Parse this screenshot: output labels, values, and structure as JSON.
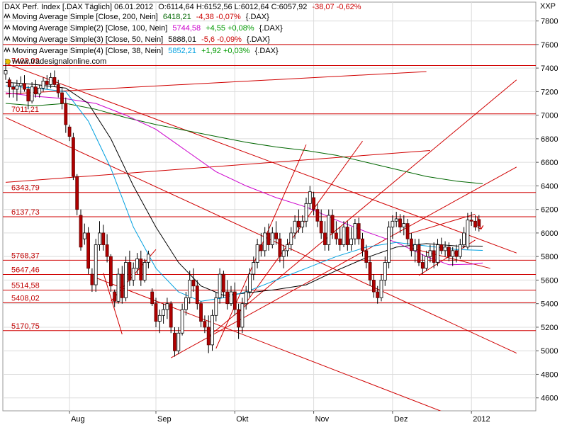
{
  "header": {
    "line": "DAX Perf. Index [.DAX Täglich] 06.01.2012",
    "ohlc": "O:6114,64 H:6152,56 L:6012,64 C:6057,92",
    "change": "-38,07 -0,62%"
  },
  "indicators": [
    {
      "label": "Moving Average Simple [Close, 200, Nein]",
      "value": "6418,21",
      "change": "-4,38 -0,07%",
      "suffix": "{.DAX}",
      "color": "#006600"
    },
    {
      "label": "Moving Average Simple(2) [Close, 100, Nein]",
      "value": "5744,58",
      "change": "+4,55 +0,08%",
      "suffix": "{.DAX}",
      "color": "#cc00cc"
    },
    {
      "label": "Moving Average Simple(3) [Close, 50, Nein]",
      "value": "5888,01",
      "change": "-5,6 -0,09%",
      "suffix": "{.DAX}",
      "color": "#000000"
    },
    {
      "label": "Moving Average Simple(4) [Close, 38, Nein]",
      "value": "5852,21",
      "change": "+1,92 +0,03%",
      "suffix": "{.DAX}",
      "color": "#00a0e0"
    }
  ],
  "watermark": "www.tradesignalonline.com",
  "chart_data": {
    "type": "candlestick",
    "y_axis_label": "XXP",
    "ylim": [
      4490,
      7960
    ],
    "y_ticks": [
      4600,
      4800,
      5000,
      5200,
      5400,
      5600,
      5800,
      6000,
      6200,
      6400,
      6600,
      6800,
      7000,
      7200,
      7400,
      7600,
      7800
    ],
    "x_range": [
      0,
      136
    ],
    "x_ticks": [
      {
        "label": "Aug",
        "x": 17
      },
      {
        "label": "Sep",
        "x": 40
      },
      {
        "label": "Okt",
        "x": 61
      },
      {
        "label": "Nov",
        "x": 82
      },
      {
        "label": "Dez",
        "x": 103
      },
      {
        "label": "2012",
        "x": 124
      }
    ],
    "levels": [
      {
        "value": 7422.02,
        "label": "7422,02"
      },
      {
        "value": 7011.21,
        "label": "7011,21"
      },
      {
        "value": 6343.79,
        "label": "6343,79"
      },
      {
        "value": 6137.73,
        "label": "6137,73"
      },
      {
        "value": 5768.37,
        "label": "5768,37"
      },
      {
        "value": 5647.46,
        "label": "5647,46"
      },
      {
        "value": 5514.58,
        "label": "5514,58"
      },
      {
        "value": 5408.02,
        "label": "5408,02"
      },
      {
        "value": 5170.75,
        "label": "5170,75"
      },
      {
        "value": 7600,
        "label": ""
      }
    ],
    "trendlines": [
      {
        "x1": 0,
        "y1": 7440,
        "x2": 136,
        "y2": 5830
      },
      {
        "x1": 0,
        "y1": 6980,
        "x2": 136,
        "y2": 4980
      },
      {
        "x1": 24,
        "y1": 5620,
        "x2": 136,
        "y2": 4240
      },
      {
        "x1": 0,
        "y1": 6430,
        "x2": 113,
        "y2": 6700
      },
      {
        "x1": 0,
        "y1": 7180,
        "x2": 112,
        "y2": 7370
      },
      {
        "x1": 44,
        "y1": 4940,
        "x2": 136,
        "y2": 6560
      },
      {
        "x1": 54,
        "y1": 5120,
        "x2": 136,
        "y2": 7300
      },
      {
        "x1": 56,
        "y1": 5020,
        "x2": 80,
        "y2": 6750
      },
      {
        "x1": 62,
        "y1": 5320,
        "x2": 95,
        "y2": 6780
      },
      {
        "x1": 26,
        "y1": 5660,
        "x2": 31,
        "y2": 5140
      },
      {
        "x1": 28,
        "y1": 5420,
        "x2": 40,
        "y2": 5860
      },
      {
        "x1": 107,
        "y1": 5990,
        "x2": 125,
        "y2": 6160
      },
      {
        "x1": 110,
        "y1": 5640,
        "x2": 125,
        "y2": 5940
      },
      {
        "x1": 108,
        "y1": 5870,
        "x2": 129,
        "y2": 5700
      }
    ],
    "candles": [
      [
        7350,
        7480,
        7300,
        7380
      ],
      [
        7300,
        7320,
        7150,
        7240
      ],
      [
        7240,
        7270,
        7150,
        7220
      ],
      [
        7220,
        7300,
        7120,
        7250
      ],
      [
        7250,
        7330,
        7180,
        7270
      ],
      [
        7270,
        7340,
        7200,
        7220
      ],
      [
        7220,
        7250,
        7050,
        7120
      ],
      [
        7120,
        7280,
        7100,
        7240
      ],
      [
        7240,
        7300,
        7150,
        7180
      ],
      [
        7180,
        7260,
        7150,
        7230
      ],
      [
        7230,
        7320,
        7200,
        7290
      ],
      [
        7290,
        7340,
        7220,
        7260
      ],
      [
        7260,
        7360,
        7230,
        7320
      ],
      [
        7320,
        7380,
        7240,
        7260
      ],
      [
        7260,
        7300,
        7150,
        7190
      ],
      [
        7190,
        7240,
        7050,
        7100
      ],
      [
        7100,
        7150,
        6850,
        6920
      ],
      [
        6900,
        6920,
        6780,
        6820
      ],
      [
        6810,
        6850,
        6450,
        6480
      ],
      [
        6480,
        6500,
        6150,
        6200
      ],
      [
        6150,
        6200,
        5850,
        5880
      ],
      [
        5950,
        6080,
        5900,
        6000
      ],
      [
        6000,
        6050,
        5650,
        5700
      ],
      [
        5650,
        5700,
        5500,
        5560
      ],
      [
        5560,
        5950,
        5500,
        5900
      ],
      [
        5900,
        6100,
        5850,
        6000
      ],
      [
        6000,
        6070,
        5850,
        5900
      ],
      [
        5900,
        5990,
        5750,
        5800
      ],
      [
        5800,
        5820,
        5500,
        5550
      ],
      [
        5500,
        5520,
        5370,
        5420
      ],
      [
        5420,
        5700,
        5400,
        5650
      ],
      [
        5650,
        5720,
        5400,
        5450
      ],
      [
        5450,
        5800,
        5420,
        5750
      ],
      [
        5750,
        5850,
        5550,
        5600
      ],
      [
        5600,
        5750,
        5550,
        5700
      ],
      [
        5700,
        5830,
        5650,
        5780
      ],
      [
        5780,
        5850,
        5550,
        5600
      ],
      [
        5600,
        5780,
        5580,
        5750
      ],
      [
        5750,
        5850,
        5700,
        5820
      ],
      [
        5500,
        5530,
        5380,
        5400
      ],
      [
        5400,
        5450,
        5200,
        5250
      ],
      [
        5250,
        5350,
        5150,
        5300
      ],
      [
        5300,
        5400,
        5230,
        5350
      ],
      [
        5350,
        5450,
        5270,
        5400
      ],
      [
        5400,
        5420,
        5150,
        5200
      ],
      [
        5150,
        5200,
        4950,
        5000
      ],
      [
        5000,
        5200,
        4970,
        5150
      ],
      [
        5150,
        5400,
        5130,
        5350
      ],
      [
        5350,
        5500,
        5300,
        5450
      ],
      [
        5450,
        5680,
        5400,
        5600
      ],
      [
        5600,
        5700,
        5500,
        5550
      ],
      [
        5550,
        5600,
        5350,
        5400
      ],
      [
        5400,
        5420,
        5200,
        5250
      ],
      [
        5250,
        5300,
        5150,
        5200
      ],
      [
        5200,
        5300,
        4980,
        5050
      ],
      [
        5050,
        5350,
        5000,
        5300
      ],
      [
        5300,
        5500,
        5250,
        5450
      ],
      [
        5450,
        5700,
        5400,
        5650
      ],
      [
        5650,
        5680,
        5450,
        5500
      ],
      [
        5500,
        5600,
        5350,
        5400
      ],
      [
        5400,
        5550,
        5380,
        5500
      ],
      [
        5500,
        5580,
        5300,
        5350
      ],
      [
        5350,
        5400,
        5100,
        5200
      ],
      [
        5200,
        5450,
        5150,
        5400
      ],
      [
        5400,
        5550,
        5350,
        5500
      ],
      [
        5500,
        5700,
        5450,
        5650
      ],
      [
        5650,
        5800,
        5600,
        5750
      ],
      [
        5750,
        5950,
        5700,
        5900
      ],
      [
        5900,
        6000,
        5800,
        5850
      ],
      [
        5850,
        6050,
        5800,
        6000
      ],
      [
        6000,
        6080,
        5850,
        5900
      ],
      [
        5900,
        6050,
        5870,
        6000
      ],
      [
        6000,
        6100,
        5900,
        5950
      ],
      [
        5950,
        6000,
        5750,
        5800
      ],
      [
        5800,
        5900,
        5700,
        5850
      ],
      [
        5850,
        5950,
        5800,
        5900
      ],
      [
        5900,
        6050,
        5850,
        6000
      ],
      [
        6000,
        6150,
        5950,
        6100
      ],
      [
        6100,
        6200,
        6000,
        6050
      ],
      [
        6050,
        6150,
        6000,
        6100
      ],
      [
        6100,
        6300,
        6050,
        6250
      ],
      [
        6250,
        6400,
        6200,
        6350
      ],
      [
        6300,
        6350,
        6150,
        6200
      ],
      [
        6200,
        6250,
        6050,
        6100
      ],
      [
        6100,
        6200,
        5950,
        6000
      ],
      [
        6000,
        6100,
        5850,
        5900
      ],
      [
        5900,
        6200,
        5850,
        6150
      ],
      [
        6150,
        6200,
        5950,
        6000
      ],
      [
        6000,
        6100,
        5900,
        5950
      ],
      [
        5950,
        6050,
        5850,
        5900
      ],
      [
        5900,
        6100,
        5880,
        6050
      ],
      [
        6050,
        6100,
        5850,
        5900
      ],
      [
        5900,
        6050,
        5850,
        5950
      ],
      [
        5950,
        6120,
        5900,
        6080
      ],
      [
        6080,
        6130,
        5900,
        5950
      ],
      [
        5950,
        6000,
        5800,
        5850
      ],
      [
        5850,
        5900,
        5700,
        5750
      ],
      [
        5750,
        5800,
        5550,
        5600
      ],
      [
        5600,
        5650,
        5450,
        5500
      ],
      [
        5500,
        5550,
        5400,
        5450
      ],
      [
        5450,
        5650,
        5420,
        5600
      ],
      [
        5600,
        5800,
        5550,
        5750
      ],
      [
        5750,
        6100,
        5700,
        6050
      ],
      [
        6050,
        6150,
        5950,
        6100
      ],
      [
        6100,
        6180,
        6050,
        6120
      ],
      [
        6120,
        6160,
        6000,
        6050
      ],
      [
        6050,
        6150,
        5980,
        6080
      ],
      [
        6080,
        6120,
        5900,
        5950
      ],
      [
        5950,
        6000,
        5800,
        5850
      ],
      [
        5850,
        5950,
        5750,
        5900
      ],
      [
        5900,
        5950,
        5720,
        5750
      ],
      [
        5750,
        5820,
        5650,
        5700
      ],
      [
        5700,
        5850,
        5680,
        5800
      ],
      [
        5800,
        5900,
        5750,
        5850
      ],
      [
        5850,
        5920,
        5700,
        5750
      ],
      [
        5750,
        5950,
        5720,
        5900
      ],
      [
        5900,
        5960,
        5820,
        5850
      ],
      [
        5850,
        5930,
        5800,
        5880
      ],
      [
        5880,
        5920,
        5760,
        5800
      ],
      [
        5800,
        5880,
        5720,
        5850
      ],
      [
        5850,
        5900,
        5750,
        5800
      ],
      [
        5800,
        5950,
        5780,
        5900
      ],
      [
        5900,
        6050,
        5870,
        6000
      ],
      [
        5880,
        6170,
        5860,
        6110
      ],
      [
        6110,
        6180,
        6060,
        6100
      ],
      [
        6100,
        6150,
        6020,
        6050
      ],
      [
        6114.64,
        6152.56,
        6012.64,
        6057.92
      ]
    ],
    "moving_averages": [
      {
        "name": "Moving Average Simple [Close, 200, Nein]",
        "color": "#006600",
        "points": [
          [
            0,
            7100
          ],
          [
            8,
            7080
          ],
          [
            16,
            7100
          ],
          [
            24,
            7050
          ],
          [
            32,
            6980
          ],
          [
            40,
            6920
          ],
          [
            48,
            6870
          ],
          [
            56,
            6820
          ],
          [
            64,
            6770
          ],
          [
            72,
            6730
          ],
          [
            80,
            6700
          ],
          [
            88,
            6660
          ],
          [
            96,
            6600
          ],
          [
            104,
            6540
          ],
          [
            112,
            6480
          ],
          [
            120,
            6440
          ],
          [
            127,
            6418
          ]
        ]
      },
      {
        "name": "Moving Average Simple(2) [Close, 100, Nein]",
        "color": "#cc00cc",
        "points": [
          [
            0,
            7190
          ],
          [
            8,
            7160
          ],
          [
            16,
            7140
          ],
          [
            24,
            7100
          ],
          [
            32,
            7000
          ],
          [
            40,
            6880
          ],
          [
            48,
            6700
          ],
          [
            56,
            6520
          ],
          [
            64,
            6400
          ],
          [
            72,
            6300
          ],
          [
            80,
            6220
          ],
          [
            88,
            6110
          ],
          [
            96,
            6010
          ],
          [
            104,
            5920
          ],
          [
            112,
            5800
          ],
          [
            118,
            5730
          ],
          [
            124,
            5735
          ],
          [
            127,
            5745
          ]
        ]
      },
      {
        "name": "Moving Average Simple(3) [Close, 50, Nein]",
        "color": "#000000",
        "points": [
          [
            0,
            7280
          ],
          [
            8,
            7260
          ],
          [
            16,
            7230
          ],
          [
            22,
            7100
          ],
          [
            28,
            6800
          ],
          [
            34,
            6400
          ],
          [
            40,
            6050
          ],
          [
            46,
            5750
          ],
          [
            52,
            5550
          ],
          [
            58,
            5470
          ],
          [
            64,
            5490
          ],
          [
            72,
            5520
          ],
          [
            80,
            5560
          ],
          [
            88,
            5680
          ],
          [
            96,
            5790
          ],
          [
            104,
            5880
          ],
          [
            112,
            5910
          ],
          [
            120,
            5890
          ],
          [
            127,
            5888
          ]
        ]
      },
      {
        "name": "Moving Average Simple(4) [Close, 38, Nein]",
        "color": "#00a0e0",
        "points": [
          [
            0,
            7250
          ],
          [
            8,
            7230
          ],
          [
            16,
            7200
          ],
          [
            22,
            6950
          ],
          [
            28,
            6550
          ],
          [
            34,
            6050
          ],
          [
            40,
            5700
          ],
          [
            46,
            5500
          ],
          [
            52,
            5420
          ],
          [
            58,
            5450
          ],
          [
            64,
            5500
          ],
          [
            72,
            5600
          ],
          [
            80,
            5700
          ],
          [
            88,
            5800
          ],
          [
            96,
            5880
          ],
          [
            104,
            5920
          ],
          [
            112,
            5890
          ],
          [
            120,
            5860
          ],
          [
            127,
            5852
          ]
        ]
      }
    ],
    "current_price": 6057.92,
    "grid": true
  }
}
